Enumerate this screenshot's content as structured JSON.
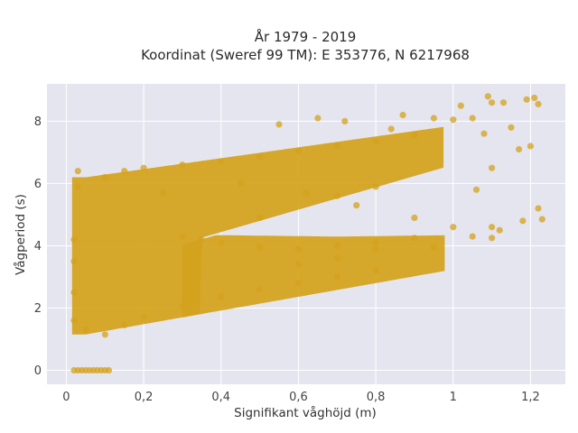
{
  "chart_data": {
    "type": "scatter",
    "title_lines": [
      "År 1979 - 2019",
      "Koordinat (Sweref 99 TM): E 353776, N 6217968"
    ],
    "xlabel": "Signifikant våghöjd (m)",
    "ylabel": "Vågperiod (s)",
    "xlim": [
      -0.05,
      1.29
    ],
    "ylim": [
      -0.45,
      9.2
    ],
    "x_ticks": [
      0,
      0.2,
      0.4,
      0.6,
      0.8,
      1,
      1.2
    ],
    "x_tick_labels": [
      "0",
      "0,2",
      "0,4",
      "0,6",
      "0,8",
      "1",
      "1,2"
    ],
    "y_ticks": [
      0,
      2,
      4,
      6,
      8
    ],
    "y_tick_labels": [
      "0",
      "2",
      "4",
      "6",
      "8"
    ],
    "grid": true,
    "colors": {
      "marker": "#d4a21c",
      "plot_bg": "#e5e5ef",
      "grid": "#ffffff"
    },
    "series": [
      {
        "points": [
          [
            0.02,
            0
          ],
          [
            0.03,
            0
          ],
          [
            0.04,
            0
          ],
          [
            0.05,
            0
          ],
          [
            0.06,
            0
          ],
          [
            0.07,
            0
          ],
          [
            0.08,
            0
          ],
          [
            0.09,
            0
          ],
          [
            0.1,
            0
          ],
          [
            0.11,
            0
          ],
          [
            0.02,
            1.6
          ],
          [
            0.02,
            2.5
          ],
          [
            0.02,
            3.5
          ],
          [
            0.02,
            4.2
          ],
          [
            0.03,
            6.4
          ],
          [
            0.03,
            5.9
          ],
          [
            0.05,
            1.3
          ],
          [
            0.1,
            1.15
          ],
          [
            0.15,
            1.45
          ],
          [
            0.2,
            1.7
          ],
          [
            0.3,
            2.05
          ],
          [
            0.4,
            2.35
          ],
          [
            0.5,
            2.6
          ],
          [
            0.6,
            2.8
          ],
          [
            0.7,
            3.0
          ],
          [
            0.8,
            3.2
          ],
          [
            0.1,
            6.2
          ],
          [
            0.15,
            6.4
          ],
          [
            0.2,
            6.5
          ],
          [
            0.3,
            6.6
          ],
          [
            0.4,
            6.7
          ],
          [
            0.5,
            6.85
          ],
          [
            0.6,
            7.05
          ],
          [
            0.7,
            7.2
          ],
          [
            0.8,
            7.35
          ],
          [
            0.9,
            7.55
          ],
          [
            0.3,
            4.3
          ],
          [
            0.4,
            4.1
          ],
          [
            0.5,
            3.95
          ],
          [
            0.6,
            3.9
          ],
          [
            0.7,
            4.0
          ],
          [
            0.8,
            4.1
          ],
          [
            0.9,
            4.25
          ],
          [
            1.0,
            4.6
          ],
          [
            1.1,
            4.6
          ],
          [
            1.18,
            4.8
          ],
          [
            0.87,
            8.2
          ],
          [
            0.95,
            8.1
          ],
          [
            1.0,
            8.05
          ],
          [
            1.02,
            8.5
          ],
          [
            1.05,
            8.1
          ],
          [
            1.1,
            8.6
          ],
          [
            1.09,
            8.8
          ],
          [
            1.13,
            8.6
          ],
          [
            1.19,
            8.7
          ],
          [
            1.21,
            8.75
          ],
          [
            1.22,
            8.55
          ],
          [
            1.08,
            7.6
          ],
          [
            1.15,
            7.8
          ],
          [
            1.2,
            7.2
          ],
          [
            1.17,
            7.1
          ],
          [
            1.1,
            6.5
          ],
          [
            1.06,
            5.8
          ],
          [
            1.22,
            5.2
          ],
          [
            1.23,
            4.85
          ],
          [
            1.1,
            4.25
          ],
          [
            0.55,
            7.9
          ],
          [
            0.65,
            8.1
          ],
          [
            0.72,
            8.0
          ],
          [
            0.84,
            7.75
          ],
          [
            0.62,
            5.7
          ],
          [
            0.7,
            5.6
          ],
          [
            0.8,
            5.9
          ],
          [
            0.75,
            5.3
          ],
          [
            0.9,
            4.9
          ],
          [
            0.95,
            3.95
          ],
          [
            0.33,
            3.5
          ],
          [
            0.5,
            4.9
          ],
          [
            0.45,
            6.0
          ],
          [
            0.35,
            4.2
          ],
          [
            0.25,
            5.7
          ],
          [
            0.6,
            3.4
          ],
          [
            0.7,
            3.6
          ],
          [
            0.8,
            3.9
          ],
          [
            1.05,
            4.3
          ],
          [
            1.12,
            4.5
          ]
        ]
      }
    ]
  }
}
